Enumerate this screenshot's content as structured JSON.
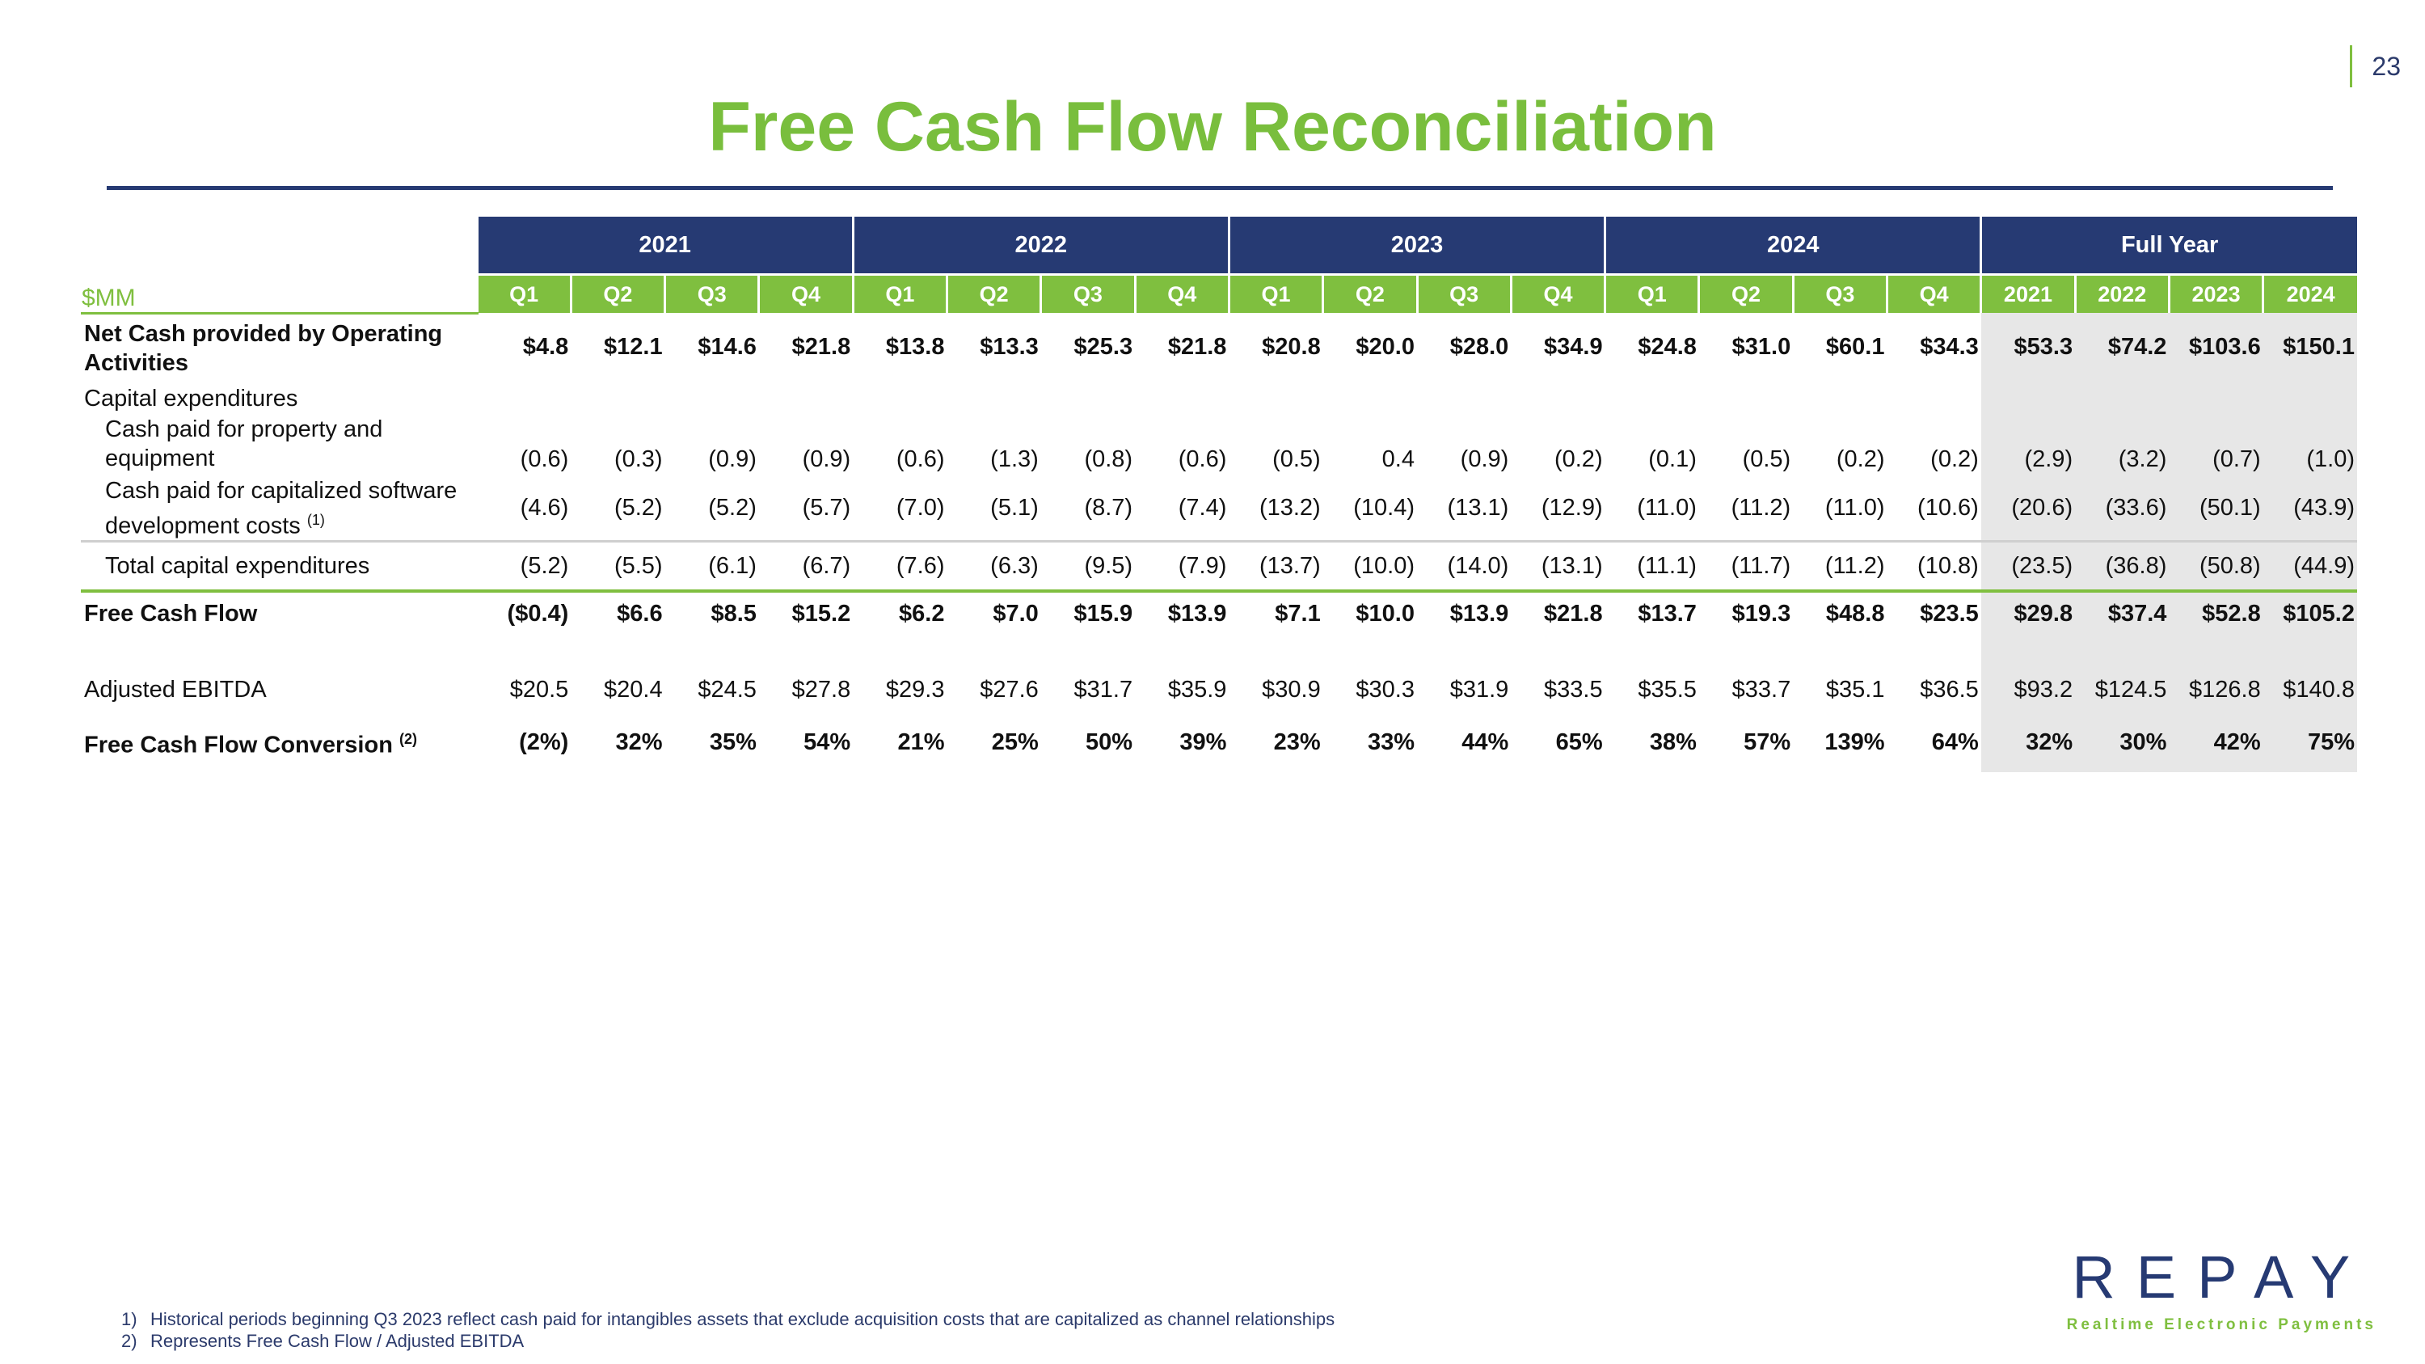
{
  "page_number": "23",
  "title": "Free Cash Flow Reconciliation",
  "table": {
    "unit_label": "$MM",
    "year_groups": [
      "2021",
      "2022",
      "2023",
      "2024",
      "Full Year"
    ],
    "columns": [
      "Q1",
      "Q2",
      "Q3",
      "Q4",
      "Q1",
      "Q2",
      "Q3",
      "Q4",
      "Q1",
      "Q2",
      "Q3",
      "Q4",
      "Q1",
      "Q2",
      "Q3",
      "Q4",
      "2021",
      "2022",
      "2023",
      "2024"
    ],
    "rows": [
      {
        "label": "Net Cash provided by Operating Activities",
        "sup": "",
        "style": "bold",
        "class": "r-ops",
        "values": [
          "$4.8",
          "$12.1",
          "$14.6",
          "$21.8",
          "$13.8",
          "$13.3",
          "$25.3",
          "$21.8",
          "$20.8",
          "$20.0",
          "$28.0",
          "$34.9",
          "$24.8",
          "$31.0",
          "$60.1",
          "$34.3",
          "$53.3",
          "$74.2",
          "$103.6",
          "$150.1"
        ]
      },
      {
        "label": "Capital expenditures",
        "sup": "",
        "style": "",
        "class": "r-capex",
        "values": [
          "",
          "",
          "",
          "",
          "",
          "",
          "",
          "",
          "",
          "",
          "",
          "",
          "",
          "",
          "",
          "",
          "",
          "",
          "",
          ""
        ]
      },
      {
        "label": "Cash paid for property and equipment",
        "sup": "",
        "style": "indent",
        "class": "r-ppe",
        "values": [
          "(0.6)",
          "(0.3)",
          "(0.9)",
          "(0.9)",
          "(0.6)",
          "(1.3)",
          "(0.8)",
          "(0.6)",
          "(0.5)",
          "0.4",
          "(0.9)",
          "(0.2)",
          "(0.1)",
          "(0.5)",
          "(0.2)",
          "(0.2)",
          "(2.9)",
          "(3.2)",
          "(0.7)",
          "(1.0)"
        ]
      },
      {
        "label": "Cash paid for capitalized software development costs",
        "sup": "(1)",
        "style": "indent",
        "class": "r-sw",
        "values": [
          "(4.6)",
          "(5.2)",
          "(5.2)",
          "(5.7)",
          "(7.0)",
          "(5.1)",
          "(8.7)",
          "(7.4)",
          "(13.2)",
          "(10.4)",
          "(13.1)",
          "(12.9)",
          "(11.0)",
          "(11.2)",
          "(11.0)",
          "(10.6)",
          "(20.6)",
          "(33.6)",
          "(50.1)",
          "(43.9)"
        ]
      },
      {
        "label": "Total capital expenditures",
        "sup": "",
        "style": "indent",
        "class": "r-total",
        "values": [
          "(5.2)",
          "(5.5)",
          "(6.1)",
          "(6.7)",
          "(7.6)",
          "(6.3)",
          "(9.5)",
          "(7.9)",
          "(13.7)",
          "(10.0)",
          "(14.0)",
          "(13.1)",
          "(11.1)",
          "(11.7)",
          "(11.2)",
          "(10.8)",
          "(23.5)",
          "(36.8)",
          "(50.8)",
          "(44.9)"
        ]
      },
      {
        "label": "Free Cash Flow",
        "sup": "",
        "style": "bold",
        "class": "r-fcf",
        "values": [
          "($0.4)",
          "$6.6",
          "$8.5",
          "$15.2",
          "$6.2",
          "$7.0",
          "$15.9",
          "$13.9",
          "$7.1",
          "$10.0",
          "$13.9",
          "$21.8",
          "$13.7",
          "$19.3",
          "$48.8",
          "$23.5",
          "$29.8",
          "$37.4",
          "$52.8",
          "$105.2"
        ]
      },
      {
        "label": "",
        "sup": "",
        "style": "",
        "class": "r-spacer",
        "values": [
          "",
          "",
          "",
          "",
          "",
          "",
          "",
          "",
          "",
          "",
          "",
          "",
          "",
          "",
          "",
          "",
          "",
          "",
          "",
          ""
        ]
      },
      {
        "label": "Adjusted EBITDA",
        "sup": "",
        "style": "",
        "class": "r-ebitda",
        "values": [
          "$20.5",
          "$20.4",
          "$24.5",
          "$27.8",
          "$29.3",
          "$27.6",
          "$31.7",
          "$35.9",
          "$30.9",
          "$30.3",
          "$31.9",
          "$33.5",
          "$35.5",
          "$33.7",
          "$35.1",
          "$36.5",
          "$93.2",
          "$124.5",
          "$126.8",
          "$140.8"
        ]
      },
      {
        "label": "Free Cash Flow Conversion",
        "sup": "(2)",
        "style": "bold",
        "class": "r-conv",
        "values": [
          "(2%)",
          "32%",
          "35%",
          "54%",
          "21%",
          "25%",
          "50%",
          "39%",
          "23%",
          "33%",
          "44%",
          "65%",
          "38%",
          "57%",
          "139%",
          "64%",
          "32%",
          "30%",
          "42%",
          "75%"
        ]
      }
    ]
  },
  "footnotes": [
    {
      "num": "1)",
      "text": "Historical periods beginning Q3 2023 reflect cash paid for intangibles assets that exclude acquisition costs that are capitalized as channel relationships"
    },
    {
      "num": "2)",
      "text": "Represents Free Cash Flow / Adjusted EBITDA"
    }
  ],
  "logo": {
    "wordmark": "REPAY",
    "tagline": "Realtime Electronic Payments"
  },
  "colors": {
    "navy": "#263a73",
    "green": "#7fbf3f",
    "shade": "#e7e7e7"
  }
}
